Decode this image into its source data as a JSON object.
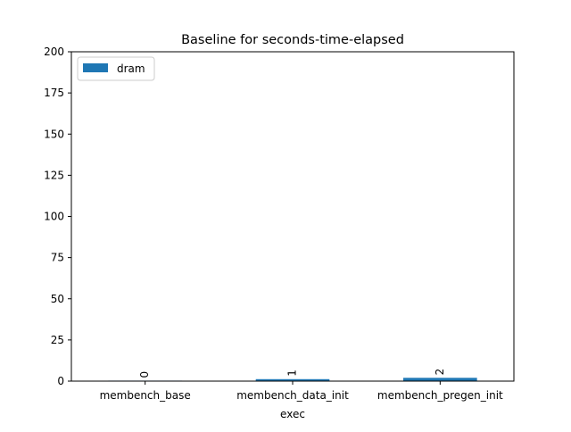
{
  "chart_data": {
    "type": "bar",
    "title": "Baseline for seconds-time-elapsed",
    "xlabel": "exec",
    "ylabel": "",
    "categories": [
      "membench_base",
      "membench_data_init",
      "membench_pregen_init"
    ],
    "series": [
      {
        "name": "dram",
        "values": [
          0.3,
          1.2,
          2.0
        ],
        "color": "#1f77b4"
      }
    ],
    "bar_labels": [
      "0",
      "1",
      "2"
    ],
    "ylim": [
      0,
      200
    ],
    "yticks": [
      0,
      25,
      50,
      75,
      100,
      125,
      150,
      175,
      200
    ],
    "grid": false,
    "legend": "top-left"
  }
}
